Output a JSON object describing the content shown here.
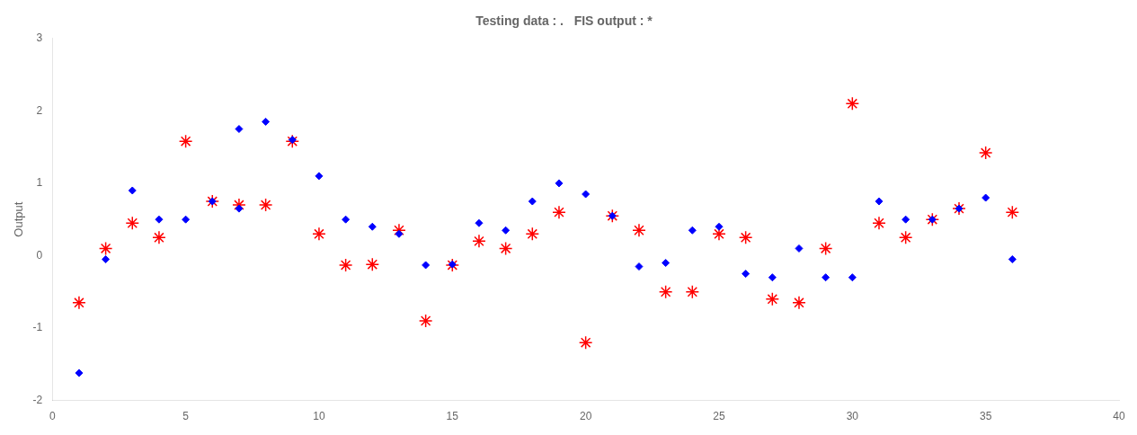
{
  "chart_data": {
    "type": "scatter",
    "title": "Testing data : .   FIS output : *",
    "ylabel": "Output",
    "xlim": [
      0,
      40
    ],
    "ylim": [
      -2,
      3
    ],
    "xticks": [
      0,
      5,
      10,
      15,
      20,
      25,
      30,
      35,
      40
    ],
    "yticks": [
      -2,
      -1,
      0,
      1,
      2,
      3
    ],
    "grid": false,
    "series": [
      {
        "color": "blue",
        "marker": "diamond",
        "x": [
          1,
          2,
          3,
          4,
          5,
          6,
          7,
          7,
          8,
          9,
          10,
          11,
          12,
          13,
          14,
          15,
          16,
          17,
          18,
          19,
          20,
          21,
          22,
          23,
          24,
          25,
          26,
          27,
          28,
          29,
          30,
          31,
          32,
          33,
          34,
          35,
          36
        ],
        "values": [
          -1.62,
          -0.05,
          0.9,
          0.5,
          0.5,
          0.75,
          0.65,
          1.75,
          1.85,
          1.6,
          1.1,
          0.5,
          0.4,
          0.3,
          -0.13,
          -0.12,
          0.45,
          0.35,
          0.75,
          1.0,
          0.85,
          0.55,
          -0.15,
          -0.1,
          0.35,
          0.4,
          -0.25,
          -0.3,
          0.1,
          -0.3,
          -0.3,
          0.75,
          0.5,
          0.5,
          0.65,
          0.8,
          -0.05
        ]
      },
      {
        "color": "red",
        "marker": "star",
        "x": [
          1,
          2,
          3,
          4,
          5,
          6,
          7,
          8,
          9,
          10,
          11,
          12,
          13,
          14,
          15,
          16,
          17,
          18,
          19,
          20,
          21,
          22,
          23,
          24,
          25,
          26,
          27,
          28,
          29,
          30,
          31,
          32,
          33,
          34,
          35,
          36
        ],
        "values": [
          -0.65,
          0.1,
          0.45,
          0.25,
          1.58,
          0.75,
          0.7,
          0.7,
          1.58,
          0.3,
          -0.13,
          -0.12,
          0.35,
          -0.9,
          -0.13,
          0.2,
          0.1,
          0.3,
          0.6,
          -1.2,
          0.55,
          0.35,
          -0.5,
          -0.5,
          0.3,
          0.25,
          -0.6,
          -0.65,
          0.1,
          2.1,
          0.45,
          0.25,
          0.5,
          0.65,
          1.42,
          0.6
        ]
      }
    ]
  }
}
